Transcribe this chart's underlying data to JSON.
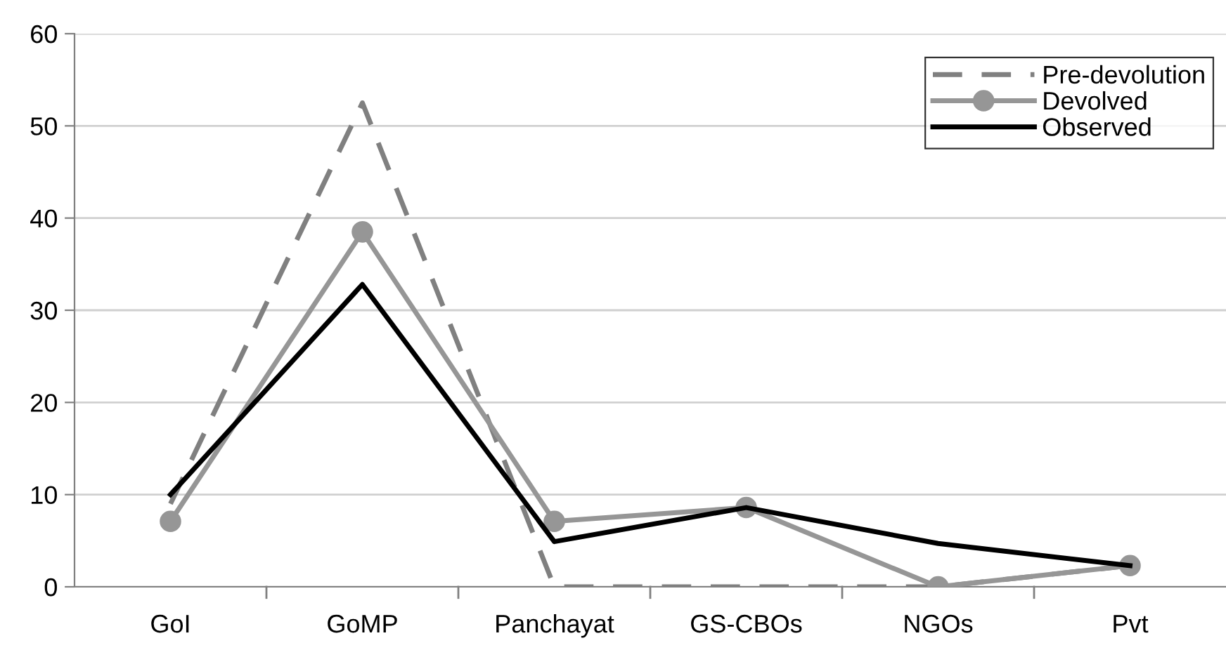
{
  "chart_data": {
    "type": "line",
    "categories": [
      "GoI",
      "GoMP",
      "Panchayat",
      "GS-CBOs",
      "NGOs",
      "Pvt"
    ],
    "series": [
      {
        "name": "Pre-devolution",
        "color": "#808080",
        "line_style": "dashed",
        "marker": "none",
        "values": [
          9,
          52.5,
          0,
          0,
          0,
          2.3
        ]
      },
      {
        "name": "Devolved",
        "color": "#969696",
        "line_style": "solid",
        "marker": "circle",
        "values": [
          7.1,
          38.5,
          7.1,
          8.6,
          0,
          2.3
        ]
      },
      {
        "name": "Observed",
        "color": "#000000",
        "line_style": "solid",
        "marker": "none",
        "values": [
          10,
          32.8,
          4.9,
          8.6,
          4.7,
          2.3
        ]
      }
    ],
    "ylim": [
      0,
      60
    ],
    "yticks": [
      0,
      10,
      20,
      30,
      40,
      50,
      60
    ],
    "grid": "y",
    "legend": "top right"
  }
}
